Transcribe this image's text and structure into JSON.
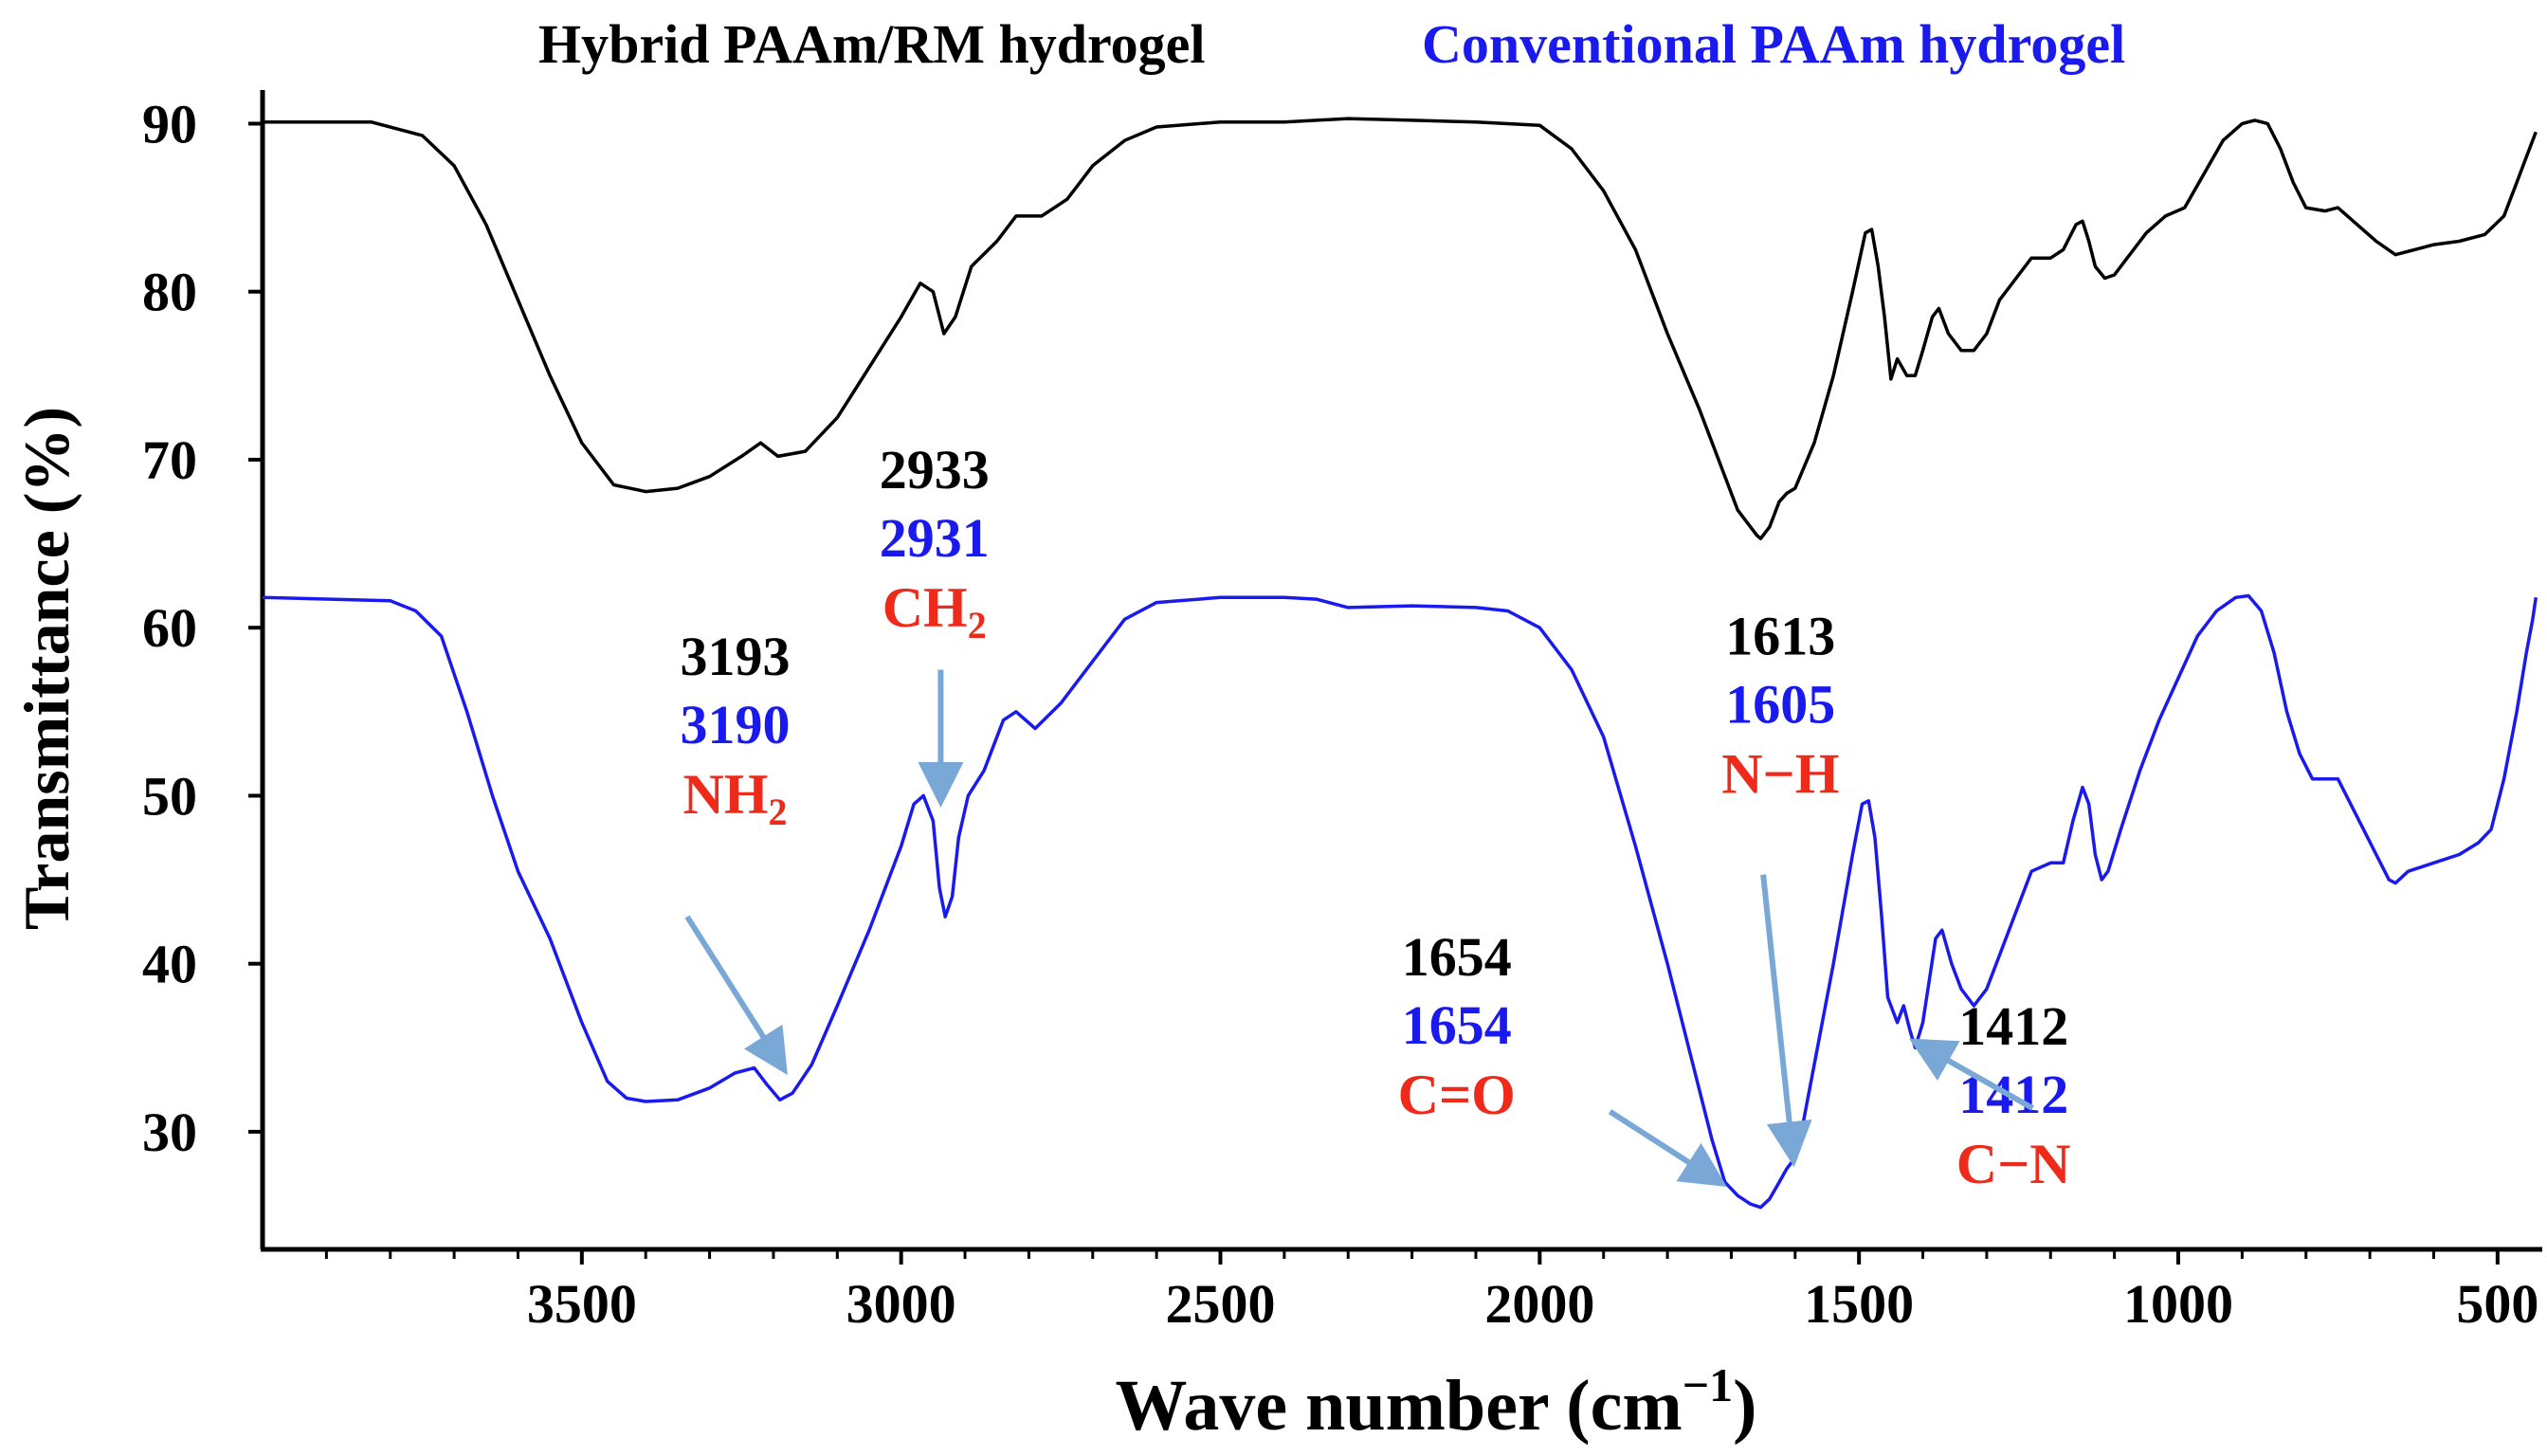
{
  "colors": {
    "axis": "#000000",
    "hybrid": "#000000",
    "conventional": "#1a1aee",
    "group_label": "#ee2b1b",
    "arrow": "#79a8d6"
  },
  "chart_data": {
    "type": "line",
    "title_left": "Hybrid PAAm/RM  hydrogel",
    "title_right": "Conventional PAAm hydrogel",
    "xlabel": "Wave number  (cm",
    "xlabel_sup": "−1",
    "xlabel_close": ")",
    "ylabel": "Transmittance  (%)",
    "xlim": [
      4000,
      430
    ],
    "ylim": [
      23,
      92
    ],
    "x_ticks": [
      3500,
      3000,
      2500,
      2000,
      1500,
      1000,
      500
    ],
    "x_tick_labels": [
      "3500",
      "3000",
      "2500",
      "2000",
      "1500",
      "1000",
      "500"
    ],
    "y_ticks": [
      30,
      40,
      50,
      60,
      70,
      80,
      90
    ],
    "y_tick_labels": [
      "30",
      "40",
      "50",
      "60",
      "70",
      "80",
      "90"
    ],
    "series": [
      {
        "name": "Hybrid PAAm/RM hydrogel",
        "points": [
          [
            4000,
            90.1
          ],
          [
            3830,
            90.1
          ],
          [
            3750,
            89.3
          ],
          [
            3700,
            87.5
          ],
          [
            3650,
            84.0
          ],
          [
            3600,
            79.5
          ],
          [
            3550,
            75.0
          ],
          [
            3500,
            71.0
          ],
          [
            3450,
            68.5
          ],
          [
            3400,
            68.1
          ],
          [
            3350,
            68.3
          ],
          [
            3300,
            69.0
          ],
          [
            3250,
            70.2
          ],
          [
            3220,
            71.0
          ],
          [
            3193,
            70.2
          ],
          [
            3150,
            70.5
          ],
          [
            3100,
            72.5
          ],
          [
            3050,
            75.5
          ],
          [
            3000,
            78.5
          ],
          [
            2970,
            80.5
          ],
          [
            2950,
            80.0
          ],
          [
            2933,
            77.5
          ],
          [
            2915,
            78.5
          ],
          [
            2890,
            81.5
          ],
          [
            2850,
            83.0
          ],
          [
            2820,
            84.5
          ],
          [
            2780,
            84.5
          ],
          [
            2740,
            85.5
          ],
          [
            2700,
            87.5
          ],
          [
            2650,
            89.0
          ],
          [
            2600,
            89.8
          ],
          [
            2500,
            90.1
          ],
          [
            2400,
            90.1
          ],
          [
            2300,
            90.3
          ],
          [
            2200,
            90.2
          ],
          [
            2100,
            90.1
          ],
          [
            2000,
            89.9
          ],
          [
            1950,
            88.5
          ],
          [
            1900,
            86.0
          ],
          [
            1850,
            82.5
          ],
          [
            1800,
            77.5
          ],
          [
            1750,
            73.0
          ],
          [
            1720,
            70.0
          ],
          [
            1690,
            67.0
          ],
          [
            1660,
            65.5
          ],
          [
            1654,
            65.3
          ],
          [
            1640,
            66.0
          ],
          [
            1625,
            67.5
          ],
          [
            1613,
            68.0
          ],
          [
            1600,
            68.3
          ],
          [
            1570,
            71.0
          ],
          [
            1540,
            75.0
          ],
          [
            1510,
            80.0
          ],
          [
            1490,
            83.5
          ],
          [
            1480,
            83.7
          ],
          [
            1470,
            81.5
          ],
          [
            1460,
            78.5
          ],
          [
            1450,
            74.8
          ],
          [
            1440,
            76.0
          ],
          [
            1425,
            75.0
          ],
          [
            1412,
            75.0
          ],
          [
            1400,
            76.5
          ],
          [
            1385,
            78.5
          ],
          [
            1375,
            79.0
          ],
          [
            1360,
            77.5
          ],
          [
            1340,
            76.5
          ],
          [
            1320,
            76.5
          ],
          [
            1300,
            77.5
          ],
          [
            1280,
            79.5
          ],
          [
            1250,
            81.0
          ],
          [
            1230,
            82.0
          ],
          [
            1200,
            82.0
          ],
          [
            1180,
            82.5
          ],
          [
            1160,
            84.0
          ],
          [
            1150,
            84.2
          ],
          [
            1140,
            83.0
          ],
          [
            1130,
            81.5
          ],
          [
            1115,
            80.8
          ],
          [
            1100,
            81.0
          ],
          [
            1080,
            82.0
          ],
          [
            1050,
            83.5
          ],
          [
            1020,
            84.5
          ],
          [
            990,
            85.0
          ],
          [
            960,
            87.0
          ],
          [
            930,
            89.0
          ],
          [
            900,
            90.0
          ],
          [
            880,
            90.2
          ],
          [
            860,
            90.0
          ],
          [
            840,
            88.5
          ],
          [
            820,
            86.5
          ],
          [
            800,
            85.0
          ],
          [
            770,
            84.8
          ],
          [
            750,
            85.0
          ],
          [
            720,
            84.0
          ],
          [
            690,
            83.0
          ],
          [
            660,
            82.2
          ],
          [
            630,
            82.5
          ],
          [
            600,
            82.8
          ],
          [
            560,
            83.0
          ],
          [
            520,
            83.4
          ],
          [
            490,
            84.5
          ],
          [
            470,
            86.5
          ],
          [
            450,
            88.5
          ],
          [
            440,
            89.5
          ]
        ]
      },
      {
        "name": "Conventional PAAm hydrogel",
        "points": [
          [
            4000,
            61.8
          ],
          [
            3800,
            61.6
          ],
          [
            3760,
            61.0
          ],
          [
            3720,
            59.5
          ],
          [
            3680,
            55.0
          ],
          [
            3640,
            50.0
          ],
          [
            3600,
            45.5
          ],
          [
            3550,
            41.5
          ],
          [
            3500,
            36.5
          ],
          [
            3460,
            33.0
          ],
          [
            3430,
            32.0
          ],
          [
            3400,
            31.8
          ],
          [
            3350,
            31.9
          ],
          [
            3300,
            32.6
          ],
          [
            3260,
            33.5
          ],
          [
            3230,
            33.8
          ],
          [
            3210,
            32.8
          ],
          [
            3190,
            31.9
          ],
          [
            3170,
            32.3
          ],
          [
            3140,
            34.0
          ],
          [
            3100,
            37.5
          ],
          [
            3050,
            42.0
          ],
          [
            3000,
            47.0
          ],
          [
            2980,
            49.5
          ],
          [
            2965,
            50.0
          ],
          [
            2950,
            48.5
          ],
          [
            2940,
            44.5
          ],
          [
            2931,
            42.8
          ],
          [
            2920,
            44.0
          ],
          [
            2910,
            47.5
          ],
          [
            2895,
            50.0
          ],
          [
            2870,
            51.5
          ],
          [
            2840,
            54.5
          ],
          [
            2820,
            55.0
          ],
          [
            2790,
            54.0
          ],
          [
            2750,
            55.5
          ],
          [
            2700,
            58.0
          ],
          [
            2650,
            60.5
          ],
          [
            2600,
            61.5
          ],
          [
            2500,
            61.8
          ],
          [
            2400,
            61.8
          ],
          [
            2350,
            61.7
          ],
          [
            2300,
            61.2
          ],
          [
            2200,
            61.3
          ],
          [
            2100,
            61.2
          ],
          [
            2050,
            61.0
          ],
          [
            2000,
            60.0
          ],
          [
            1950,
            57.5
          ],
          [
            1900,
            53.5
          ],
          [
            1850,
            47.0
          ],
          [
            1800,
            40.0
          ],
          [
            1760,
            34.0
          ],
          [
            1730,
            29.5
          ],
          [
            1710,
            27.0
          ],
          [
            1690,
            26.2
          ],
          [
            1670,
            25.7
          ],
          [
            1654,
            25.5
          ],
          [
            1640,
            26.0
          ],
          [
            1625,
            27.0
          ],
          [
            1613,
            27.8
          ],
          [
            1605,
            28.2
          ],
          [
            1590,
            30.0
          ],
          [
            1570,
            34.0
          ],
          [
            1540,
            40.0
          ],
          [
            1510,
            46.5
          ],
          [
            1495,
            49.5
          ],
          [
            1485,
            49.7
          ],
          [
            1475,
            47.5
          ],
          [
            1465,
            43.0
          ],
          [
            1455,
            38.0
          ],
          [
            1440,
            36.5
          ],
          [
            1430,
            37.5
          ],
          [
            1420,
            36.0
          ],
          [
            1412,
            35.0
          ],
          [
            1400,
            36.5
          ],
          [
            1390,
            39.0
          ],
          [
            1380,
            41.5
          ],
          [
            1370,
            42.0
          ],
          [
            1355,
            40.0
          ],
          [
            1340,
            38.5
          ],
          [
            1320,
            37.5
          ],
          [
            1300,
            38.5
          ],
          [
            1280,
            40.5
          ],
          [
            1250,
            43.5
          ],
          [
            1230,
            45.5
          ],
          [
            1200,
            46.0
          ],
          [
            1180,
            46.0
          ],
          [
            1165,
            48.5
          ],
          [
            1150,
            50.5
          ],
          [
            1140,
            49.5
          ],
          [
            1130,
            46.5
          ],
          [
            1120,
            45.0
          ],
          [
            1110,
            45.5
          ],
          [
            1090,
            48.0
          ],
          [
            1060,
            51.5
          ],
          [
            1030,
            54.5
          ],
          [
            1000,
            57.0
          ],
          [
            970,
            59.5
          ],
          [
            940,
            61.0
          ],
          [
            910,
            61.8
          ],
          [
            890,
            61.9
          ],
          [
            870,
            61.0
          ],
          [
            850,
            58.5
          ],
          [
            830,
            55.0
          ],
          [
            810,
            52.5
          ],
          [
            790,
            51.0
          ],
          [
            770,
            51.0
          ],
          [
            750,
            51.0
          ],
          [
            730,
            49.5
          ],
          [
            710,
            48.0
          ],
          [
            690,
            46.5
          ],
          [
            670,
            45.0
          ],
          [
            660,
            44.8
          ],
          [
            640,
            45.5
          ],
          [
            600,
            46.0
          ],
          [
            560,
            46.5
          ],
          [
            530,
            47.2
          ],
          [
            510,
            48.0
          ],
          [
            490,
            51.0
          ],
          [
            470,
            55.0
          ],
          [
            455,
            58.5
          ],
          [
            445,
            60.5
          ],
          [
            440,
            61.8
          ]
        ]
      }
    ],
    "annotations": [
      {
        "id": "nh2",
        "hybrid": "3193",
        "conventional": "3190",
        "group": "NH",
        "group_sub": "2",
        "label_anchor": {
          "x": 3260,
          "y": 57.2
        },
        "arrow_from": {
          "x": 3335,
          "y": 42.8
        },
        "arrow_to": {
          "x": 3185,
          "y": 33.8
        }
      },
      {
        "id": "ch2",
        "hybrid": "2933",
        "conventional": "2931",
        "group": "CH",
        "group_sub": "2",
        "label_anchor": {
          "x": 2948,
          "y": 68.3
        },
        "arrow_from": {
          "x": 2938,
          "y": 57.5
        },
        "arrow_to": {
          "x": 2938,
          "y": 49.8
        }
      },
      {
        "id": "nh",
        "hybrid": "1613",
        "conventional": "1605",
        "group": "N−H",
        "group_sub": "",
        "label_anchor": {
          "x": 1623,
          "y": 58.4
        },
        "arrow_from": {
          "x": 1650,
          "y": 45.3
        },
        "arrow_to": {
          "x": 1603,
          "y": 28.4
        }
      },
      {
        "id": "co",
        "hybrid": "1654",
        "conventional": "1654",
        "group": "C=O",
        "group_sub": "",
        "label_anchor": {
          "x": 2130,
          "y": 39.3
        },
        "arrow_from": {
          "x": 1890,
          "y": 31.2
        },
        "arrow_to": {
          "x": 1718,
          "y": 27.0
        }
      },
      {
        "id": "cn",
        "hybrid": "1412",
        "conventional": "1412",
        "group": "C−N",
        "group_sub": "",
        "label_anchor": {
          "x": 1258,
          "y": 35.2
        },
        "arrow_from": {
          "x": 1228,
          "y": 31.4
        },
        "arrow_to": {
          "x": 1410,
          "y": 35.3
        }
      }
    ]
  }
}
